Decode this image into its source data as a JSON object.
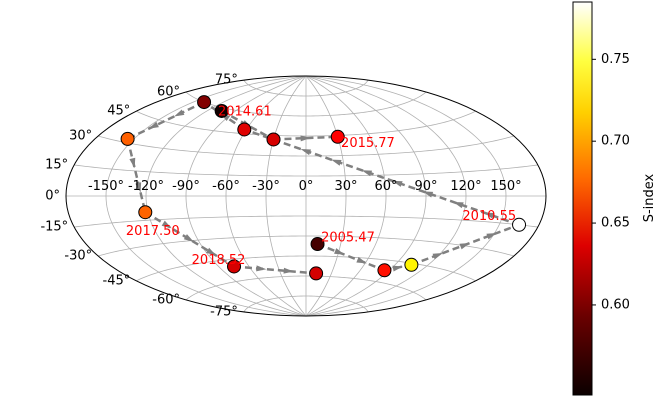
{
  "chart_data": {
    "type": "scatter",
    "projection": "aitoff",
    "grid": true,
    "x_ticks": [
      "-150°",
      "-120°",
      "-90°",
      "-60°",
      "-30°",
      "0°",
      "30°",
      "60°",
      "90°",
      "120°",
      "150°"
    ],
    "x_tick_values": [
      -150,
      -120,
      -90,
      -60,
      -30,
      0,
      30,
      60,
      90,
      120,
      150
    ],
    "y_ticks": [
      "75°",
      "60°",
      "45°",
      "30°",
      "15°",
      "0°",
      "-15°",
      "-30°",
      "-45°",
      "-60°",
      "-75°"
    ],
    "y_tick_values": [
      75,
      60,
      45,
      30,
      15,
      0,
      -15,
      -30,
      -45,
      -60,
      -75
    ],
    "colorbar": {
      "label": "S-index",
      "range": [
        0.545,
        0.785
      ],
      "ticks": [
        "0.60",
        "0.65",
        "0.70",
        "0.75"
      ],
      "tick_values": [
        0.6,
        0.65,
        0.7,
        0.75
      ],
      "colormap": "hot"
    },
    "points": [
      {
        "lon": 10,
        "lat": -36,
        "s": 0.565
      },
      {
        "lon": 12,
        "lat": -58,
        "s": 0.614
      },
      {
        "lon": -75,
        "lat": -50,
        "s": 0.615
      },
      {
        "lon": -122,
        "lat": -10,
        "s": 0.668
      },
      {
        "lon": -155,
        "lat": 32,
        "s": 0.667
      },
      {
        "lon": -105,
        "lat": 58,
        "s": 0.547
      },
      {
        "lon": -140,
        "lat": 60,
        "s": 0.586
      },
      {
        "lon": -62,
        "lat": 48,
        "s": 0.618
      },
      {
        "lon": -30,
        "lat": 42,
        "s": 0.615
      },
      {
        "lon": 30,
        "lat": 44,
        "s": 0.63
      },
      {
        "lon": 165,
        "lat": -15,
        "s": 0.785
      },
      {
        "lon": 105,
        "lat": -46,
        "s": 0.72
      },
      {
        "lon": 85,
        "lat": -52,
        "s": 0.638
      }
    ],
    "path_order": [
      0,
      12,
      11,
      10,
      7,
      6,
      4,
      3,
      2,
      1
    ],
    "path_order_2": [
      5,
      8,
      9
    ],
    "annotations": [
      {
        "text": "2014.61",
        "lon": -78,
        "lat": 60
      },
      {
        "text": "2015.77",
        "lon": 55,
        "lat": 38
      },
      {
        "text": "2010.55",
        "lon": 140,
        "lat": -12
      },
      {
        "text": "2017.50",
        "lon": -122,
        "lat": -22
      },
      {
        "text": "2005.47",
        "lon": 35,
        "lat": -31
      },
      {
        "text": "2018.52",
        "lon": -85,
        "lat": -45
      }
    ],
    "annotation_color": "#ff0000"
  }
}
